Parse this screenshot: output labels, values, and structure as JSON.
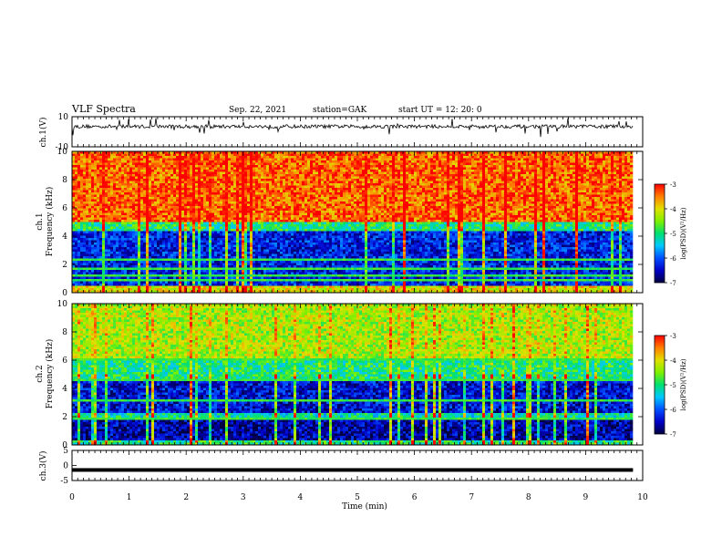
{
  "header": {
    "title": "VLF Spectra",
    "date": "Sep. 22, 2021",
    "station": "station=GAK",
    "start_ut": "start UT = 12: 20: 0"
  },
  "colors": {
    "colormap": [
      "#000040",
      "#0000c8",
      "#0050ff",
      "#00c8ff",
      "#00e070",
      "#80f000",
      "#e0e000",
      "#ff8000",
      "#ff0000",
      "#ffffff"
    ]
  },
  "chart_data": [
    {
      "type": "line",
      "title": "",
      "ylabel": "ch.1(V)",
      "ylim": [
        -10,
        10
      ],
      "y_ticklabels": [
        "10",
        "-10"
      ],
      "description_level": 4,
      "baseline_v": 3.5,
      "noise_v": 1.2
    },
    {
      "type": "heatmap",
      "channel_label": "ch.1",
      "ylabel": "Frequency (kHz)",
      "ylim": [
        0,
        10
      ],
      "y_ticklabels": [
        "0",
        "2",
        "4",
        "6",
        "8",
        "10"
      ],
      "colorbar": {
        "label": "log(PSD)(V²/Hz)",
        "range": [
          -7,
          -3
        ],
        "ticklabels": [
          "-3",
          "-4",
          "-5",
          "-6",
          "-7"
        ]
      },
      "bands": [
        {
          "from_khz": 5.0,
          "to_khz": 10.0,
          "log_psd": -3.4
        },
        {
          "from_khz": 4.4,
          "to_khz": 5.0,
          "log_psd": -5.0
        },
        {
          "from_khz": 0.5,
          "to_khz": 4.4,
          "log_psd": -6.3
        },
        {
          "from_khz": 0.0,
          "to_khz": 0.5,
          "log_psd": -4.0
        }
      ],
      "hum_lines_khz": [
        0.9,
        1.2,
        1.7,
        2.1,
        2.3
      ]
    },
    {
      "type": "heatmap",
      "channel_label": "ch.2",
      "ylabel": "Frequency (kHz)",
      "ylim": [
        0,
        10
      ],
      "y_ticklabels": [
        "0",
        "2",
        "4",
        "6",
        "8",
        "10"
      ],
      "colorbar": {
        "label": "log(PSD)(V²/Hz)",
        "range": [
          -7,
          -3
        ],
        "ticklabels": [
          "-3",
          "-4",
          "-5",
          "-6",
          "-7"
        ]
      },
      "bands": [
        {
          "from_khz": 6.0,
          "to_khz": 10.0,
          "log_psd": -4.3
        },
        {
          "from_khz": 4.6,
          "to_khz": 6.0,
          "log_psd": -5.0
        },
        {
          "from_khz": 2.2,
          "to_khz": 4.6,
          "log_psd": -6.4
        },
        {
          "from_khz": 1.7,
          "to_khz": 2.2,
          "log_psd": -5.2
        },
        {
          "from_khz": 0.4,
          "to_khz": 1.7,
          "log_psd": -6.6
        },
        {
          "from_khz": 0.0,
          "to_khz": 0.4,
          "log_psd": -5.0
        }
      ],
      "hum_lines_khz": [
        1.9,
        3.1,
        4.6,
        6.0
      ]
    },
    {
      "type": "line",
      "title": "",
      "ylabel": "ch.3(V)",
      "ylim": [
        -5,
        5
      ],
      "y_ticklabels": [
        "5",
        "0",
        "-5"
      ],
      "constant_v": -1.5
    }
  ],
  "x_axis": {
    "label": "Time (min)",
    "range": [
      0,
      10
    ],
    "ticklabels": [
      "0",
      "1",
      "2",
      "3",
      "4",
      "5",
      "6",
      "7",
      "8",
      "9",
      "10"
    ],
    "data_end_min": 9.83
  }
}
